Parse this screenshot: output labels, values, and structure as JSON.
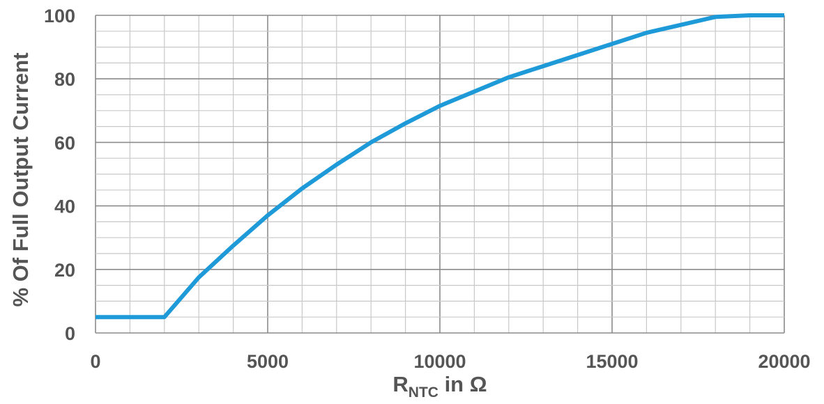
{
  "chart_data": {
    "type": "line",
    "title": "",
    "xlabel_main": "R",
    "xlabel_sub": "NTC",
    "xlabel_rest": " in Ω",
    "ylabel": "% Of Full Output Current",
    "xlim": [
      0,
      20000
    ],
    "ylim": [
      0,
      100
    ],
    "x_ticks": [
      0,
      5000,
      10000,
      15000,
      20000
    ],
    "x_tick_labels": [
      "0",
      "5000",
      "10000",
      "15000",
      "20000"
    ],
    "y_ticks": [
      0,
      20,
      40,
      60,
      80,
      100
    ],
    "y_tick_labels": [
      "0",
      "20",
      "40",
      "60",
      "80",
      "100"
    ],
    "x_minor_step": 1000,
    "y_minor_step": 5,
    "grid": true,
    "series": [
      {
        "color": "#1f9ad8",
        "x": [
          0,
          2000,
          3000,
          4000,
          5000,
          6000,
          7000,
          8000,
          9000,
          10000,
          11000,
          12000,
          13000,
          14000,
          15000,
          16000,
          17000,
          18000,
          19000,
          20000
        ],
        "y": [
          5,
          5,
          17.5,
          27.5,
          37,
          45.5,
          53,
          60,
          66,
          71.5,
          76,
          80.5,
          84,
          87.5,
          91,
          94.5,
          97,
          99.5,
          100,
          100
        ]
      }
    ]
  },
  "colors": {
    "grid_minor": "#c8c8c8",
    "grid_major": "#8a8a8a",
    "text": "#555555",
    "line": "#1f9ad8"
  }
}
